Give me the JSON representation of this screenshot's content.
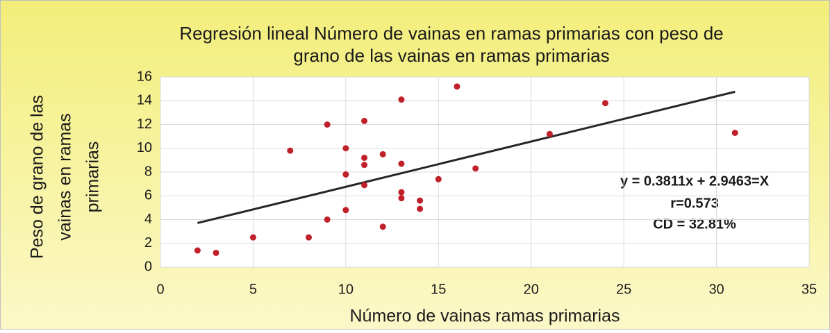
{
  "chart_data": {
    "type": "scatter",
    "title": [
      "Regresión lineal  Número de vainas en ramas primarias con peso de",
      "grano de las vainas en ramas primarias"
    ],
    "x_label": "Número de vainas ramas primarias",
    "y_label": [
      "Peso de grano de las",
      "vainas en ramas",
      "primarias"
    ],
    "annotations": [
      "y = 0.3811x + 2.9463=X",
      "r=0.573",
      "CD = 32.81%"
    ],
    "series": [
      {
        "color": "#c0202a",
        "x": [
          2,
          3,
          5,
          7,
          8,
          9,
          9,
          10,
          10,
          10,
          11,
          11,
          11,
          11,
          12,
          12,
          13,
          13,
          13,
          13,
          14,
          14,
          15,
          16,
          17,
          21,
          24,
          31
        ],
        "values": [
          1.4,
          1.2,
          2.5,
          9.8,
          2.5,
          12,
          4.0,
          10,
          7.8,
          4.8,
          12.3,
          9.2,
          8.6,
          6.9,
          9.5,
          3.4,
          14.1,
          8.7,
          6.3,
          5.8,
          5.6,
          4.9,
          7.4,
          15.2,
          8.3,
          11.2,
          13.8,
          11.3
        ]
      }
    ],
    "trendline": {
      "color": "#262626",
      "x": [
        2,
        31
      ],
      "values": [
        3.71,
        14.76
      ]
    },
    "xlim": [
      0,
      35
    ],
    "xticks": [
      0,
      5,
      10,
      15,
      20,
      25,
      30,
      35
    ],
    "ylim": [
      0,
      16
    ],
    "yticks": [
      0,
      2,
      4,
      6,
      8,
      10,
      12,
      14,
      16
    ],
    "grid": true
  }
}
